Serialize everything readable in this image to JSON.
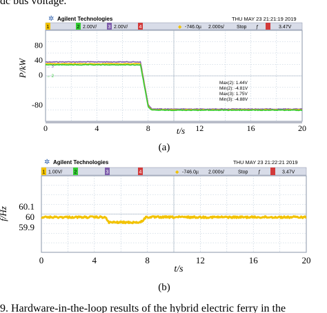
{
  "top_text": "dc bus voltage.",
  "bottom_caption": "9.   Hardware-in-the-loop results of the hybrid electric ferry in the",
  "colors": {
    "ch1": "#f2c200",
    "ch2": "#33cc33",
    "ch3": "#7d5cab",
    "ch4": "#d23a3a",
    "grid": "#b8c8d8",
    "header": "#d8dce8",
    "dc_bar": "#b8bcc8"
  },
  "panels": [
    {
      "label": "(a)",
      "header": {
        "logo_text": "Agilent Technologies",
        "timestamp": "THU MAY 23 21:21:19 2019",
        "ch1": "1",
        "ch2": "2",
        "ch2_scale": "2.00V/",
        "ch3": "3",
        "ch3_scale": "2.00V/",
        "ch4": "4",
        "offset": "-746.0µ",
        "timebase": "2.000s/",
        "mode": "Stop",
        "trig_value": "3.47V"
      },
      "markers": {
        "m3": "→ 3",
        "m2": "→ 2"
      },
      "measurements": [
        "Max(2): 1.44V",
        "Min(2): -4.81V",
        "Max(3): 1.75V",
        "Min(3): -4.88V"
      ]
    },
    {
      "label": "(b)",
      "header": {
        "logo_text": "Agilent Technologies",
        "timestamp": "THU MAY 23 21:22:21 2019",
        "ch1": "1",
        "ch1_scale": "1.00V/",
        "ch2": "2",
        "ch3": "3",
        "ch4": "4",
        "offset": "-746.0µ",
        "timebase": "2.000s/",
        "mode": "Stop",
        "trig_value": "3.47V"
      }
    }
  ],
  "chart_data": [
    {
      "type": "line",
      "xlabel": "t/s",
      "ylabel": "P/kW",
      "xlim": [
        0,
        20
      ],
      "ylim": [
        -125,
        120
      ],
      "xticks": [
        0,
        4,
        8,
        12,
        16,
        20
      ],
      "yticks": [
        -80,
        0,
        40,
        80
      ],
      "grid": true,
      "series": [
        {
          "x": [
            0,
            7.4,
            8.0,
            8.3,
            20
          ],
          "values": [
            35,
            35,
            -80,
            -92,
            -92
          ]
        },
        {
          "x": [
            0,
            7.4,
            8.0,
            8.3,
            20
          ],
          "values": [
            30,
            30,
            -84,
            -94,
            -94
          ]
        },
        {
          "x": [
            0,
            7.4,
            8.0,
            8.3,
            20
          ],
          "values": [
            27,
            27,
            -86,
            -95,
            -95
          ]
        }
      ]
    },
    {
      "type": "line",
      "xlabel": "t/s",
      "ylabel": "f/Hz",
      "xlim": [
        0,
        20
      ],
      "ylim": [
        59.66,
        60.4
      ],
      "xticks": [
        0,
        4,
        8,
        12,
        16,
        20
      ],
      "yticks": [
        59.9,
        60,
        60.1
      ],
      "grid": true,
      "series": [
        {
          "x": [
            0,
            4.8,
            5.1,
            7.5,
            7.9,
            20
          ],
          "values": [
            60.0,
            60.0,
            59.95,
            59.95,
            60.0,
            60.0
          ]
        }
      ]
    }
  ]
}
